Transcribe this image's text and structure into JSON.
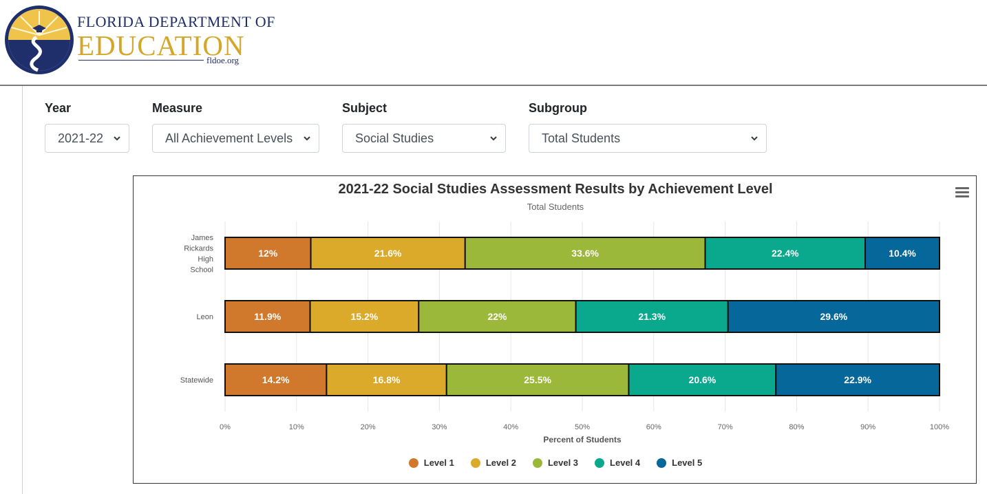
{
  "header": {
    "logo_line1": "FLORIDA DEPARTMENT OF",
    "logo_line2": "EDUCATION",
    "logo_line3": "fldoe.org"
  },
  "filters": [
    {
      "label": "Year",
      "value": "2021-22"
    },
    {
      "label": "Measure",
      "value": "All Achievement Levels"
    },
    {
      "label": "Subject",
      "value": "Social Studies"
    },
    {
      "label": "Subgroup",
      "value": "Total Students"
    }
  ],
  "colors": {
    "level1": "#d0782b",
    "level2": "#dcaa2a",
    "level3": "#9bb83b",
    "level4": "#0aa88c",
    "level5": "#05679a"
  },
  "chart_data": {
    "type": "bar",
    "orientation": "horizontal",
    "stacked": true,
    "title": "2021-22 Social Studies Assessment Results by Achievement Level",
    "subtitle": "Total Students",
    "xlabel": "Percent of Students",
    "ylabel": "",
    "xlim": [
      0,
      100
    ],
    "x_ticks": [
      "0%",
      "10%",
      "20%",
      "30%",
      "40%",
      "50%",
      "60%",
      "70%",
      "80%",
      "90%",
      "100%"
    ],
    "grid": true,
    "legend_position": "bottom",
    "categories": [
      "James Rickards High School",
      "Leon",
      "Statewide"
    ],
    "series": [
      {
        "name": "Level 1",
        "values": [
          12,
          11.9,
          14.2
        ]
      },
      {
        "name": "Level 2",
        "values": [
          21.6,
          15.2,
          16.8
        ]
      },
      {
        "name": "Level 3",
        "values": [
          33.6,
          22,
          25.5
        ]
      },
      {
        "name": "Level 4",
        "values": [
          22.4,
          21.3,
          20.6
        ]
      },
      {
        "name": "Level 5",
        "values": [
          10.4,
          29.6,
          22.9
        ]
      }
    ]
  }
}
